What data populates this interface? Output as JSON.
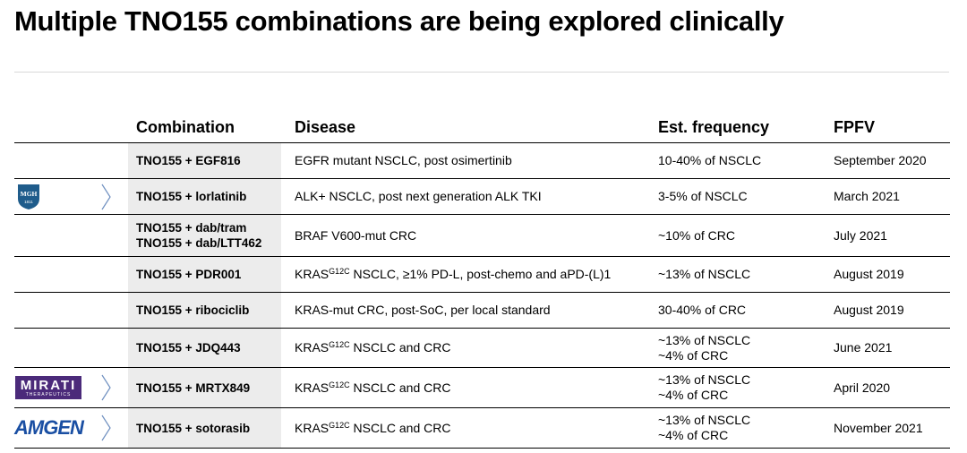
{
  "title": "Multiple TNO155 combinations are being explored clinically",
  "headers": {
    "combination": "Combination",
    "disease": "Disease",
    "frequency": "Est. frequency",
    "fpfv": "FPFV"
  },
  "rows": [
    {
      "combo1": "TNO155 + EGF816",
      "combo2": "",
      "disease_pre": "EGFR mutant NSCLC, post osimertinib",
      "disease_sup": "",
      "disease_post": "",
      "freq1": "10-40% of NSCLC",
      "freq2": "",
      "fpfv": "September 2020",
      "partner": ""
    },
    {
      "combo1": "TNO155 + lorlatinib",
      "combo2": "",
      "disease_pre": "ALK+ NSCLC, post next generation ALK TKI",
      "disease_sup": "",
      "disease_post": "",
      "freq1": "3-5% of NSCLC",
      "freq2": "",
      "fpfv": "March 2021",
      "partner": "MGH"
    },
    {
      "combo1": "TNO155 + dab/tram",
      "combo2": "TNO155 + dab/LTT462",
      "disease_pre": "BRAF V600-mut CRC",
      "disease_sup": "",
      "disease_post": "",
      "freq1": "~10% of CRC",
      "freq2": "",
      "fpfv": "July 2021",
      "partner": ""
    },
    {
      "combo1": "TNO155 + PDR001",
      "combo2": "",
      "disease_pre": "KRAS",
      "disease_sup": "G12C",
      "disease_post": " NSCLC, ≥1% PD-L, post-chemo and aPD-(L)1",
      "freq1": "~13% of NSCLC",
      "freq2": "",
      "fpfv": "August 2019",
      "partner": ""
    },
    {
      "combo1": "TNO155 + ribociclib",
      "combo2": "",
      "disease_pre": "KRAS-mut CRC, post-SoC, per local standard",
      "disease_sup": "",
      "disease_post": "",
      "freq1": "30-40% of CRC",
      "freq2": "",
      "fpfv": "August 2019",
      "partner": ""
    },
    {
      "combo1": "TNO155 + JDQ443",
      "combo2": "",
      "disease_pre": "KRAS",
      "disease_sup": "G12C",
      "disease_post": " NSCLC and CRC",
      "freq1": "~13% of NSCLC",
      "freq2": "~4% of CRC",
      "fpfv": "June 2021",
      "partner": ""
    },
    {
      "combo1": "TNO155 + MRTX849",
      "combo2": "",
      "disease_pre": "KRAS",
      "disease_sup": "G12C",
      "disease_post": " NSCLC and CRC",
      "freq1": "~13% of NSCLC",
      "freq2": "~4% of CRC",
      "fpfv": "April 2020",
      "partner": "MIRATI"
    },
    {
      "combo1": "TNO155 + sotorasib",
      "combo2": "",
      "disease_pre": "KRAS",
      "disease_sup": "G12C",
      "disease_post": " NSCLC and CRC",
      "freq1": "~13% of NSCLC",
      "freq2": "~4% of CRC",
      "fpfv": "November 2021",
      "partner": "AMGEN"
    }
  ],
  "logos": {
    "mgh": "MGH",
    "mgh_year": "1811",
    "mirati": "MIRATI",
    "mirati_sub": "THERAPEUTICS",
    "amgen": "AMGEN"
  },
  "colors": {
    "combo_bg": "#ececec",
    "mgh_blue": "#1f5c8b",
    "mirati_purple": "#4b2a7a",
    "amgen_blue": "#1a4fa3",
    "chevron": "#6e8fc0"
  }
}
